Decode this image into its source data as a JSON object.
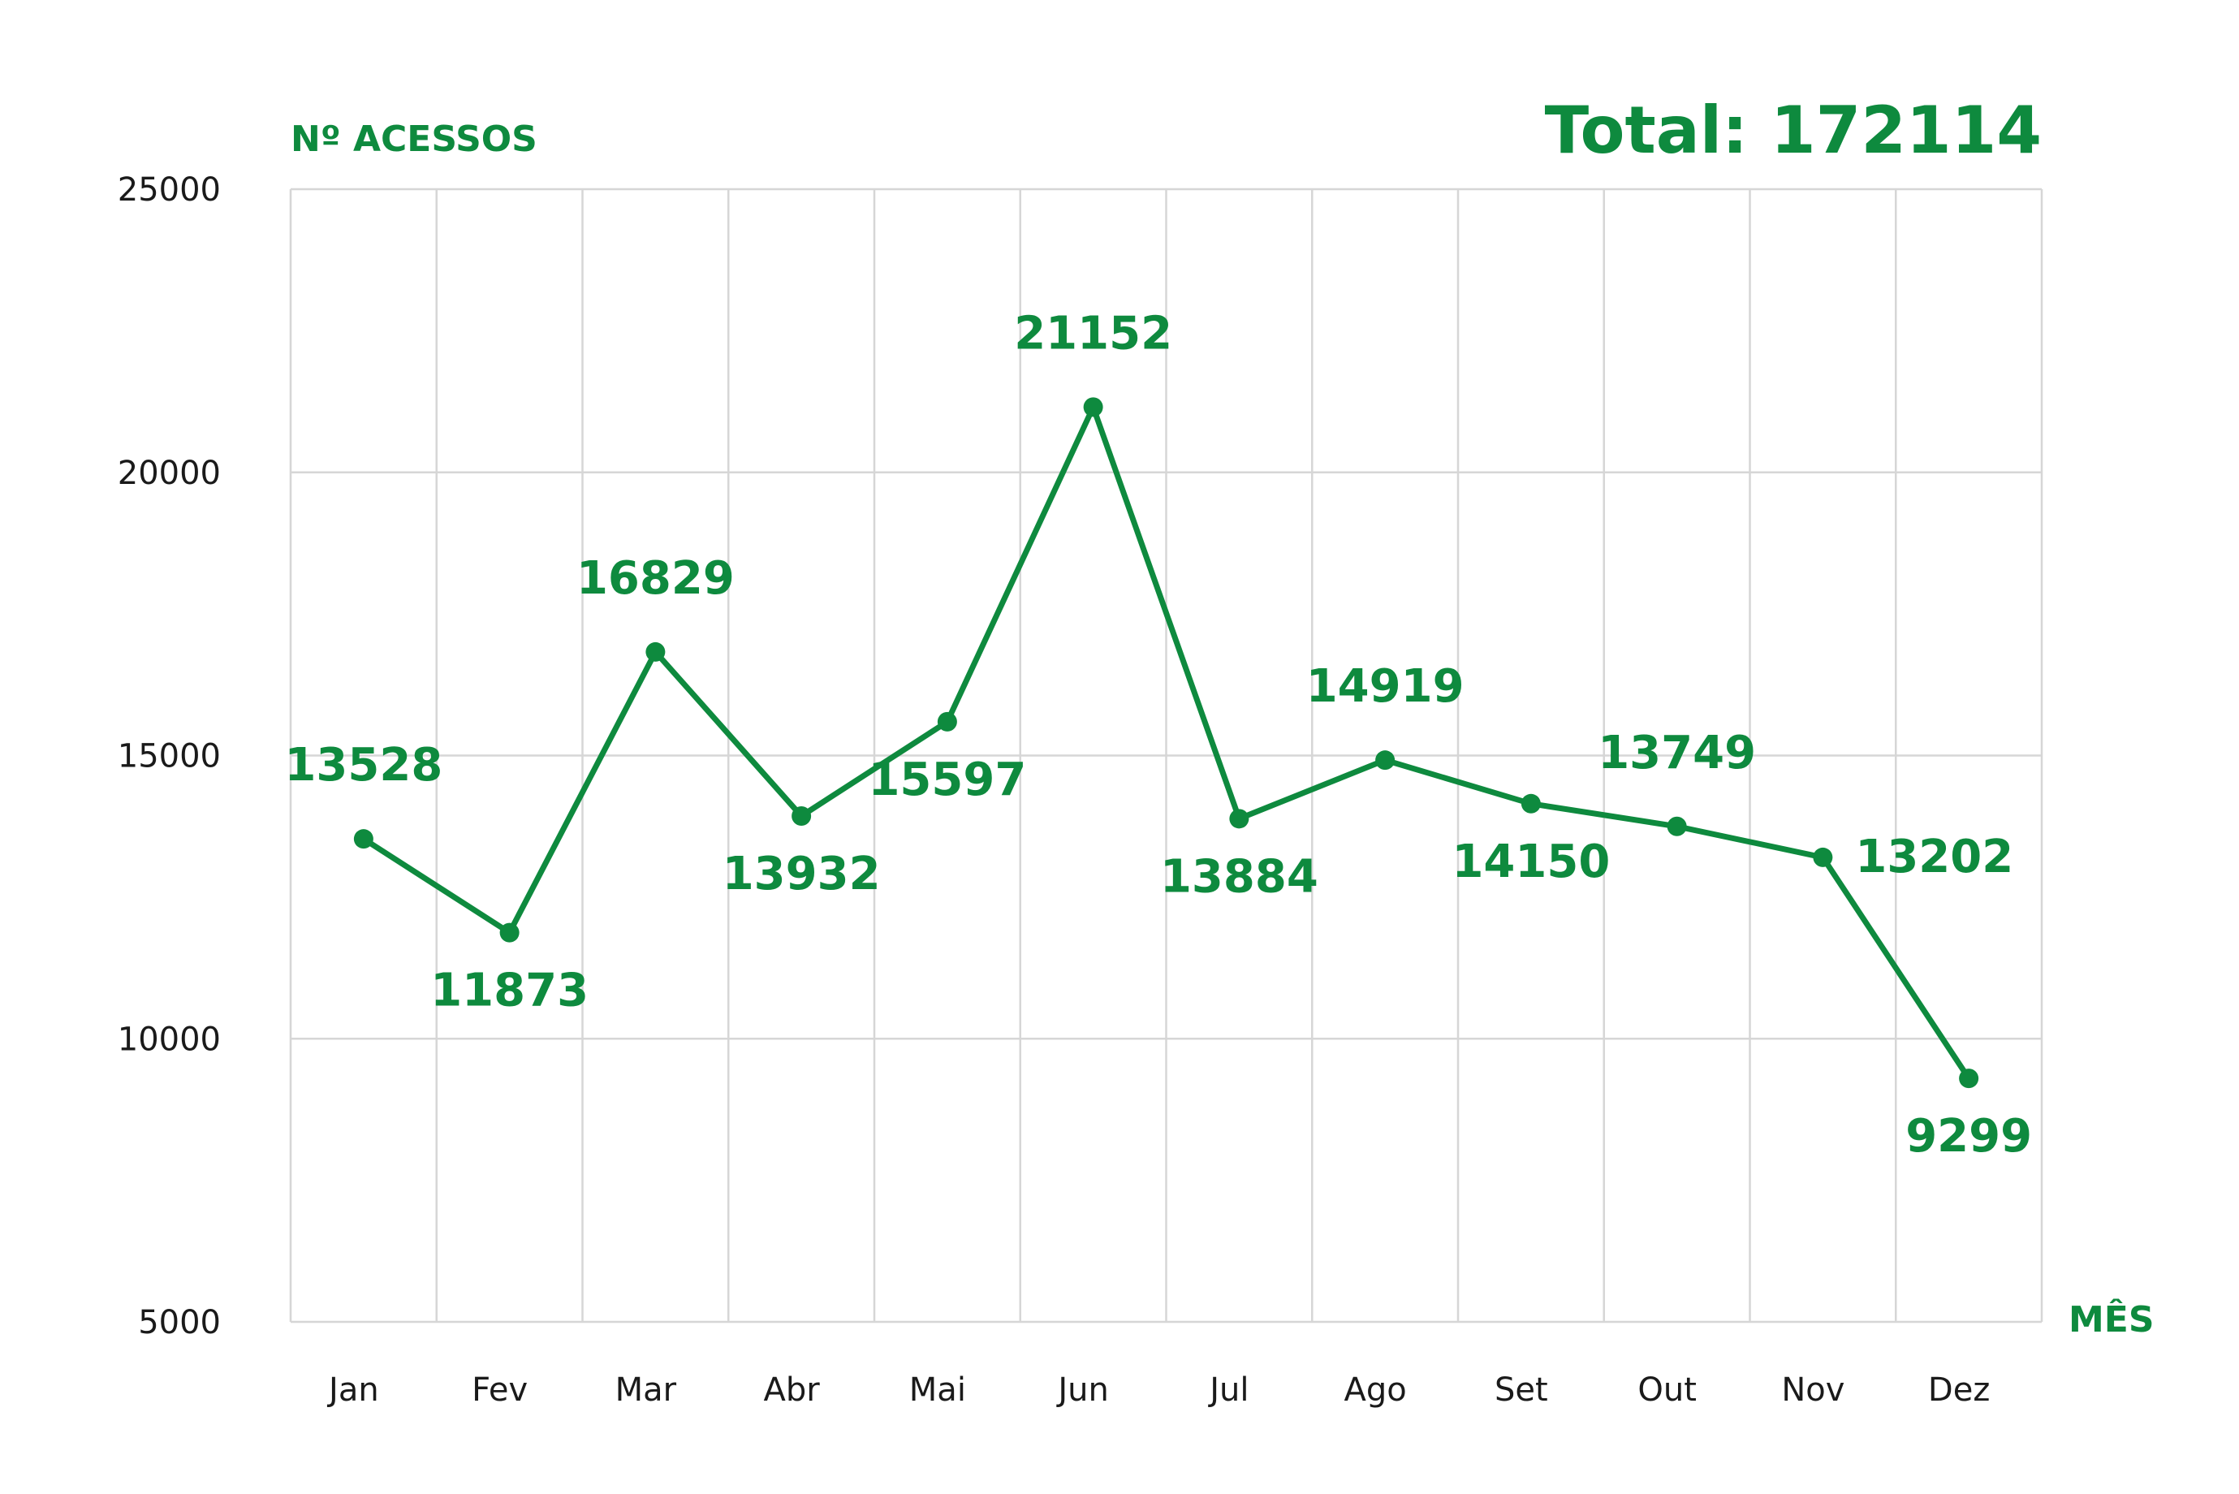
{
  "header": {
    "y_axis_title": "Nº ACESSOS",
    "x_axis_title": "MÊS",
    "total_label": "Total: 172114"
  },
  "colors": {
    "accent": "#0e8a3e",
    "grid": "#d6d6d6",
    "tick_text": "#1a1a1a"
  },
  "chart_data": {
    "type": "line",
    "categories": [
      "Jan",
      "Fev",
      "Mar",
      "Abr",
      "Mai",
      "Jun",
      "Jul",
      "Ago",
      "Set",
      "Out",
      "Nov",
      "Dez"
    ],
    "series": [
      {
        "values": [
          13528,
          11873,
          16829,
          13932,
          15597,
          21152,
          13884,
          14919,
          14150,
          13749,
          13202,
          9299
        ],
        "label_position": [
          "above",
          "below",
          "above",
          "below",
          "below",
          "above",
          "below",
          "above",
          "below",
          "above",
          "right",
          "below"
        ]
      }
    ],
    "ylabel": "Nº ACESSOS",
    "xlabel": "MÊS",
    "ylim": [
      5000,
      25000
    ],
    "yticks": [
      5000,
      10000,
      15000,
      20000,
      25000
    ],
    "grid": true,
    "total": "Total: 172114"
  }
}
